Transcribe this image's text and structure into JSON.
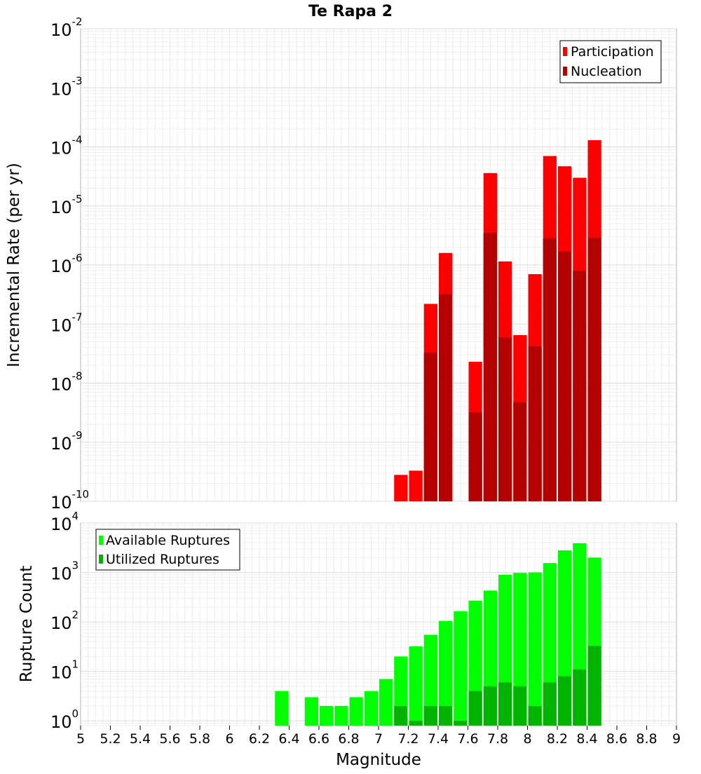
{
  "chart_data": [
    {
      "type": "bar",
      "title": "Te Rapa 2",
      "ylabel": "Incremental Rate (per yr)",
      "yscale": "log",
      "ylim": [
        1e-10,
        0.01
      ],
      "xlim": [
        5,
        9
      ],
      "grid": true,
      "legend_position": "top-right",
      "bin_width": 0.1,
      "y_ticks": [
        {
          "base": "10",
          "exp": "-10"
        },
        {
          "base": "10",
          "exp": "-9"
        },
        {
          "base": "10",
          "exp": "-8"
        },
        {
          "base": "10",
          "exp": "-7"
        },
        {
          "base": "10",
          "exp": "-6"
        },
        {
          "base": "10",
          "exp": "-5"
        },
        {
          "base": "10",
          "exp": "-4"
        },
        {
          "base": "10",
          "exp": "-3"
        },
        {
          "base": "10",
          "exp": "-2"
        }
      ],
      "legend": [
        {
          "label": "Participation",
          "color": "#ff0000"
        },
        {
          "label": "Nucleation",
          "color": "#b30000"
        }
      ],
      "series": [
        {
          "name": "Participation",
          "color": "#ff0000",
          "x": [
            7.15,
            7.25,
            7.35,
            7.45,
            7.65,
            7.75,
            7.85,
            7.95,
            8.05,
            8.15,
            8.25,
            8.35,
            8.45
          ],
          "values": [
            2.8e-10,
            3.3e-10,
            2.2e-07,
            1.6e-06,
            2.3e-08,
            3.6e-05,
            1.15e-06,
            6.5e-08,
            7e-07,
            7e-05,
            4.7e-05,
            3e-05,
            0.00013
          ]
        },
        {
          "name": "Nucleation",
          "color": "#b30000",
          "x": [
            7.35,
            7.45,
            7.65,
            7.75,
            7.85,
            7.95,
            8.05,
            8.15,
            8.25,
            8.35,
            8.45
          ],
          "values": [
            3.3e-08,
            3.2e-07,
            3.2e-09,
            3.5e-06,
            6e-08,
            4.8e-09,
            4.2e-08,
            2.8e-06,
            1.7e-06,
            8e-07,
            2.9e-06
          ]
        }
      ]
    },
    {
      "type": "bar",
      "xlabel": "Magnitude",
      "ylabel": "Rupture Count",
      "yscale": "log",
      "ylim": [
        0.8,
        10000
      ],
      "xlim": [
        5,
        9
      ],
      "grid": true,
      "legend_position": "top-left",
      "bin_width": 0.1,
      "x_ticks": [
        "5",
        "5.2",
        "5.4",
        "5.6",
        "5.8",
        "6",
        "6.2",
        "6.4",
        "6.6",
        "6.8",
        "7",
        "7.2",
        "7.4",
        "7.6",
        "7.8",
        "8",
        "8.2",
        "8.4",
        "8.6",
        "8.8",
        "9"
      ],
      "y_ticks": [
        {
          "base": "10",
          "exp": "0",
          "value": 1
        },
        {
          "base": "10",
          "exp": "1",
          "value": 10
        },
        {
          "base": "10",
          "exp": "2",
          "value": 100
        },
        {
          "base": "10",
          "exp": "3",
          "value": 1000
        },
        {
          "base": "10",
          "exp": "4",
          "value": 10000
        }
      ],
      "legend": [
        {
          "label": "Available Ruptures",
          "color": "#00ff00"
        },
        {
          "label": "Utilized Ruptures",
          "color": "#00b300"
        }
      ],
      "series": [
        {
          "name": "Available Ruptures",
          "color": "#00ff00",
          "x": [
            6.35,
            6.55,
            6.65,
            6.75,
            6.85,
            6.95,
            7.05,
            7.15,
            7.25,
            7.35,
            7.45,
            7.55,
            7.65,
            7.75,
            7.85,
            7.95,
            8.05,
            8.15,
            8.25,
            8.35,
            8.45
          ],
          "values": [
            4,
            3,
            2,
            2,
            3,
            4,
            7,
            20,
            32,
            55,
            105,
            165,
            270,
            430,
            900,
            980,
            1000,
            1550,
            2800,
            3900,
            2000
          ]
        },
        {
          "name": "Utilized Ruptures",
          "color": "#00b300",
          "x": [
            7.15,
            7.25,
            7.35,
            7.45,
            7.55,
            7.65,
            7.75,
            7.85,
            7.95,
            8.05,
            8.15,
            8.25,
            8.35,
            8.45
          ],
          "values": [
            2,
            1,
            2,
            2,
            1,
            4,
            5,
            6,
            5,
            2,
            6,
            8,
            11,
            33
          ]
        }
      ]
    }
  ]
}
